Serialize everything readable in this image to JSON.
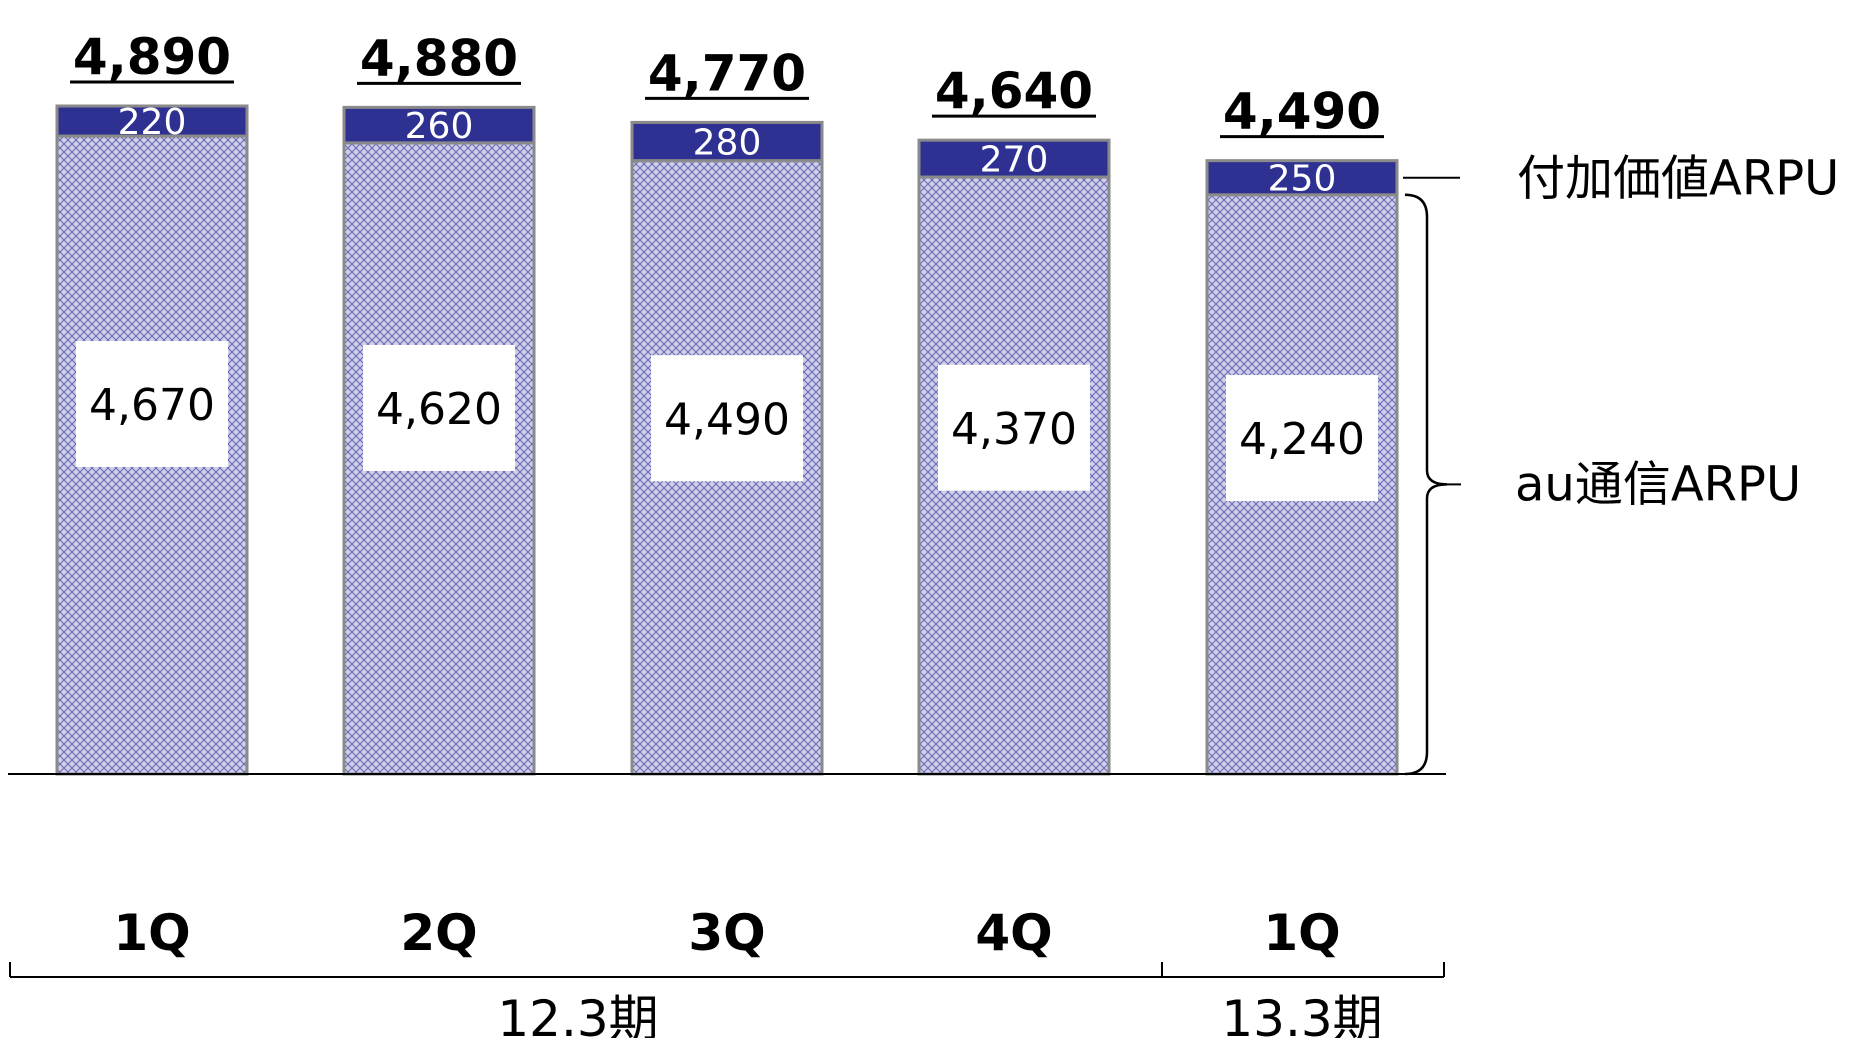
{
  "chart_data": {
    "type": "bar",
    "stacked": true,
    "categories": [
      "1Q",
      "2Q",
      "3Q",
      "4Q",
      "1Q"
    ],
    "series": [
      {
        "name": "au通信ARPU",
        "values": [
          4670,
          4620,
          4490,
          4370,
          4240
        ],
        "color": "#b8b8e0",
        "pattern": "crosshatch"
      },
      {
        "name": "付加価値ARPU",
        "values": [
          220,
          260,
          280,
          270,
          250
        ],
        "color": "#2e3192"
      }
    ],
    "totals": [
      4890,
      4880,
      4770,
      4640,
      4490
    ],
    "base_labels": [
      "4,670",
      "4,620",
      "4,490",
      "4,370",
      "4,240"
    ],
    "top_labels": [
      "220",
      "260",
      "280",
      "270",
      "250"
    ],
    "total_labels": [
      "4,890",
      "4,880",
      "4,770",
      "4,640",
      "4,490"
    ],
    "period_groups": [
      {
        "label": "12.3期",
        "categories": [
          "1Q",
          "2Q",
          "3Q",
          "4Q"
        ]
      },
      {
        "label": "13.3期",
        "categories": [
          "1Q"
        ]
      }
    ],
    "legend_placement": "right",
    "grid": false,
    "ylim": [
      0,
      4890
    ]
  }
}
